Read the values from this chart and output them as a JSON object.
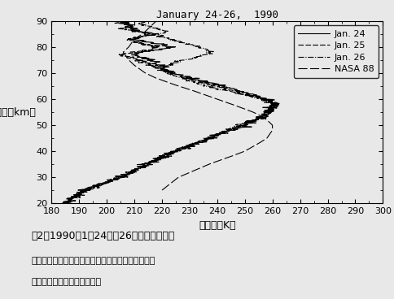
{
  "title": "January 24-26,  1990",
  "xlabel": "気　温（K）",
  "ylabel": "高　度（km）",
  "xlim": [
    180,
    300
  ],
  "ylim": [
    20,
    90
  ],
  "xticks": [
    180,
    190,
    200,
    210,
    220,
    230,
    240,
    250,
    260,
    270,
    280,
    290,
    300
  ],
  "yticks": [
    20,
    30,
    40,
    50,
    60,
    70,
    80,
    90
  ],
  "legend_labels": [
    "Jan. 24",
    "Jan. 25",
    "Jan. 26",
    "NASA 88"
  ],
  "caption_line1": "図2　1990年1月24日～26日の気温の変動",
  "caption_line2": "国立環境研究所オゾンレーザーレーダーによって観",
  "caption_line3": "測された気温邉直分布の変動",
  "background_color": "#e8e8e8"
}
